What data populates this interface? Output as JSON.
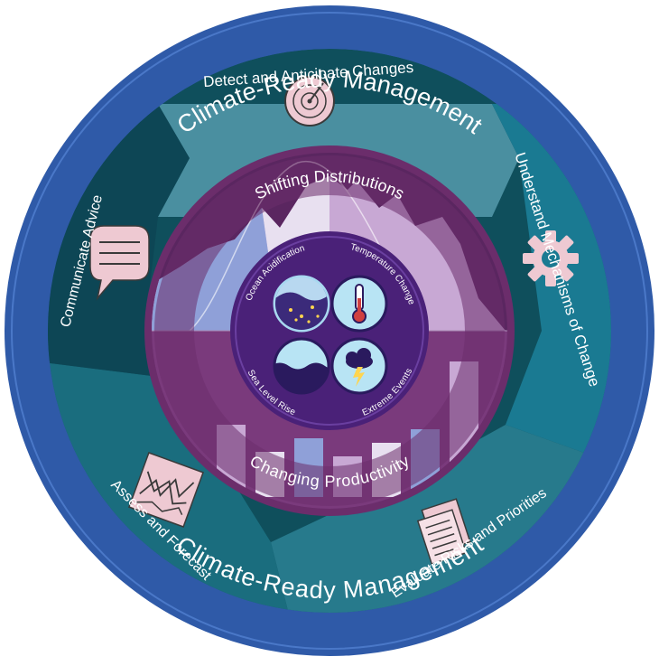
{
  "outer_ring": {
    "top_label": "Climate-Ready Management",
    "bottom_label": "Climate-Ready Management"
  },
  "cycle_steps": [
    {
      "label": "Detect and Anticipate Changes",
      "icon": "radar-icon"
    },
    {
      "label": "Understand Mechanisms of Change",
      "icon": "gear-icon"
    },
    {
      "label": "Evaluate Risks and Priorities",
      "icon": "documents-icon"
    },
    {
      "label": "Assess and Forecast",
      "icon": "forecast-chart-icon"
    },
    {
      "label": "Communicate Advice",
      "icon": "speech-bubble-icon"
    }
  ],
  "inner_ring": {
    "top_label": "Shifting Distributions",
    "bottom_label": "Changing Productivity"
  },
  "core": {
    "drivers": [
      {
        "label": "Ocean Acidification",
        "icon": "bubbles-icon"
      },
      {
        "label": "Temperature Change",
        "icon": "thermometer-icon"
      },
      {
        "label": "Sea Level Rise",
        "icon": "waves-icon"
      },
      {
        "label": "Extreme Events",
        "icon": "storm-cloud-icon"
      }
    ]
  },
  "colors": {
    "outer_ring": "#2f5aa8",
    "cycle_dark": "#0f4f5c",
    "cycle_mid": "#1a6d7e",
    "cycle_light": "#4a8fa0",
    "inner_ring": "#6b2d6b",
    "core": "#4a2178",
    "icon_fill": "#eec9d2",
    "mountain_light": "#c8a8d4",
    "mountain_white": "#e8e0f0",
    "bar_blue": "#8fa0d8"
  }
}
